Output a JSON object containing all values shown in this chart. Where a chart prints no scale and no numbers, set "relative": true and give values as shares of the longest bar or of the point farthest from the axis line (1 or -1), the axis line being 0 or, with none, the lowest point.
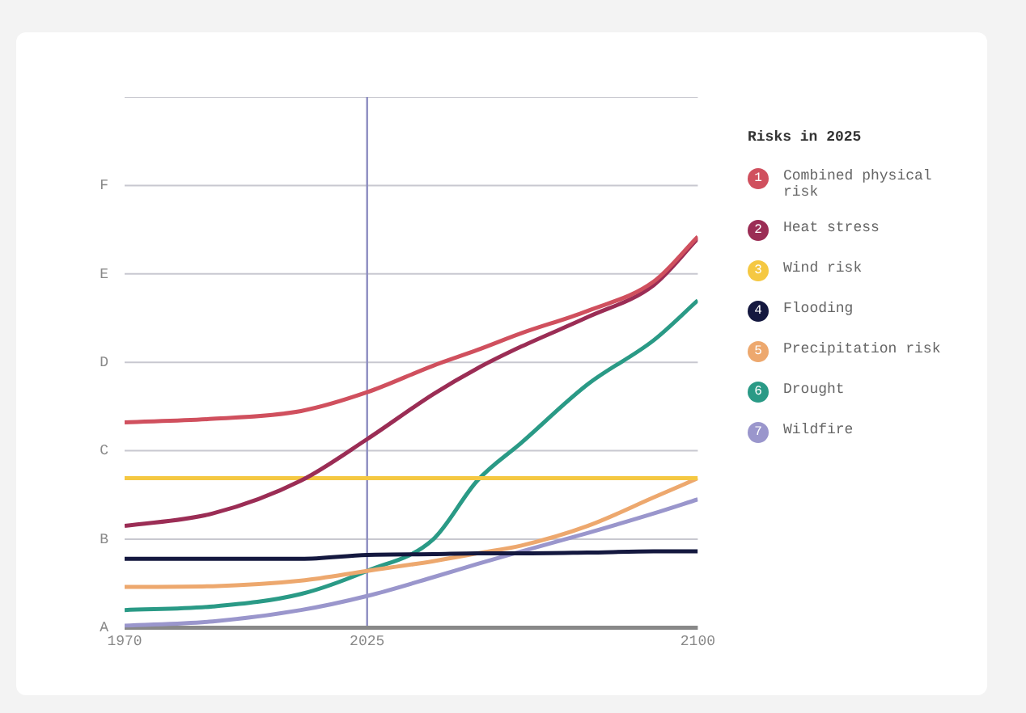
{
  "chart_data": {
    "type": "line",
    "legend_title": "Risks in 2025",
    "legend": "right",
    "grid": "y",
    "marker": "none",
    "line_style": "solid",
    "relative": true,
    "annotations": [
      "A",
      "B",
      "C",
      "D",
      "E",
      "F",
      "1",
      "2",
      "3",
      "4",
      "5",
      "6",
      "7"
    ],
    "x": [
      1970,
      1990,
      2010,
      2025,
      2040,
      2050,
      2060,
      2075,
      2090,
      2100
    ],
    "xlim": [
      1970,
      2100
    ],
    "xticks": [
      1970,
      2025,
      2100
    ],
    "ref_lines": [
      {
        "axis": "x",
        "value": 2025,
        "color": "#8c8cc0"
      }
    ],
    "series": [
      {
        "name": "Combined physical risk",
        "color": "#d0505e",
        "values": [
          0.525,
          0.534,
          0.554,
          0.602,
          0.67,
          0.71,
          0.753,
          0.81,
          0.885,
          1
        ]
      },
      {
        "name": "Heat stress",
        "color": "#9b2d55",
        "values": [
          0.26,
          0.292,
          0.376,
          0.482,
          0.597,
          0.663,
          0.719,
          0.794,
          0.876,
          0.995
        ]
      },
      {
        "name": "Wind risk",
        "color": "#f5c842",
        "values": [
          0.382,
          0.382,
          0.382,
          0.382,
          0.382,
          0.382,
          0.382,
          0.382,
          0.382,
          0.382
        ]
      },
      {
        "name": "Flooding",
        "color": "#14183f",
        "values": [
          0.176,
          0.176,
          0.176,
          0.186,
          0.188,
          0.19,
          0.19,
          0.192,
          0.195,
          0.195
        ]
      },
      {
        "name": "Precipitation risk",
        "color": "#eda86e",
        "values": [
          0.104,
          0.106,
          0.12,
          0.145,
          0.17,
          0.19,
          0.21,
          0.26,
          0.333,
          0.382
        ]
      },
      {
        "name": "Drought",
        "color": "#2a9a86",
        "values": [
          0.045,
          0.054,
          0.086,
          0.145,
          0.226,
          0.376,
          0.473,
          0.622,
          0.735,
          0.837
        ]
      },
      {
        "name": "Wildfire",
        "color": "#9a96cc",
        "values": [
          0.005,
          0.016,
          0.045,
          0.081,
          0.129,
          0.163,
          0.195,
          0.242,
          0.292,
          0.328
        ]
      }
    ]
  }
}
